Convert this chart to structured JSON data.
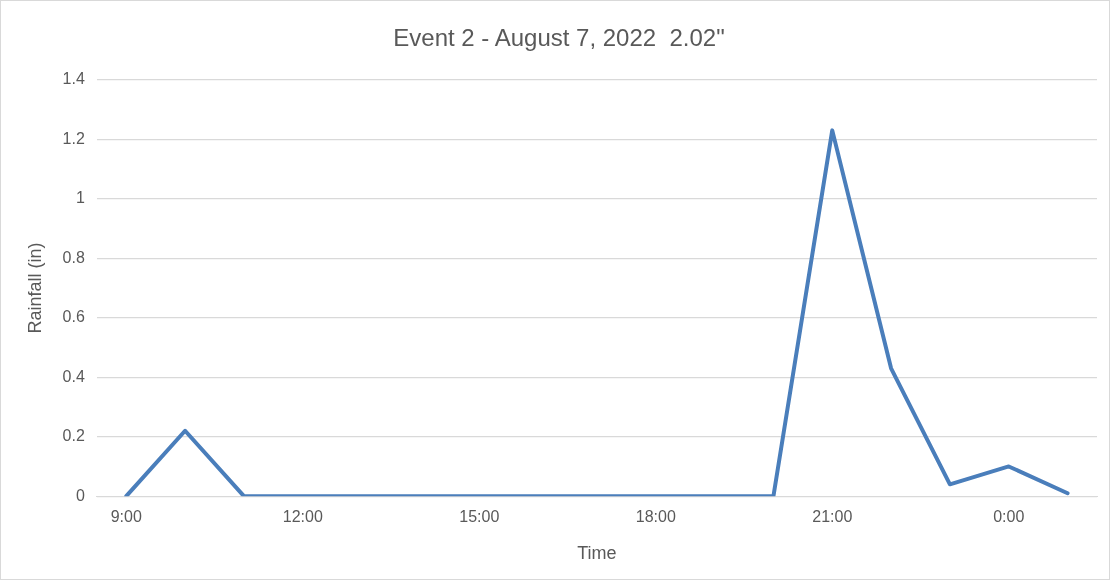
{
  "chart_data": {
    "type": "line",
    "title": "Event 2 - August 7, 2022  2.02\"",
    "xlabel": "Time",
    "ylabel": "Rainfall (in)",
    "categories": [
      "9:00",
      null,
      null,
      "12:00",
      null,
      null,
      "15:00",
      null,
      null,
      "18:00",
      null,
      null,
      "21:00",
      null,
      null,
      "0:00",
      null
    ],
    "series": [
      {
        "color": "#4a7ebb",
        "values": [
          0,
          0.22,
          0,
          0,
          0,
          0,
          0,
          0,
          0,
          0,
          0,
          0,
          1.23,
          0.43,
          0.04,
          0.1,
          0.01
        ]
      }
    ],
    "ylim": [
      0,
      1.4
    ],
    "yticks": [
      0,
      0.2,
      0.4,
      0.6,
      0.8,
      1,
      1.2,
      1.4
    ],
    "grid": "y",
    "legend": false,
    "marker": "none",
    "line_style": "solid"
  }
}
